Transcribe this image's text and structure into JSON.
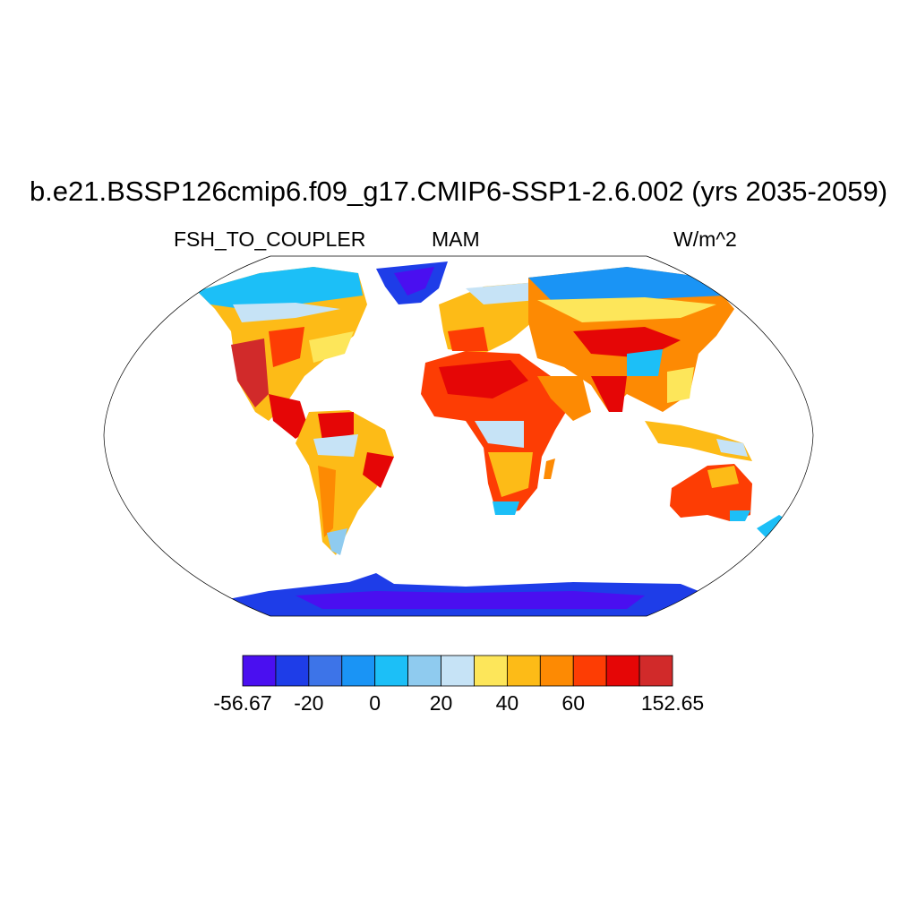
{
  "header": {
    "title": "b.e21.BSSP126cmip6.f09_g17.CMIP6-SSP1-2.6.002 (yrs 2035-2059)",
    "variable": "FSH_TO_COUPLER",
    "season": "MAM",
    "units": "W/m^2"
  },
  "colorbar": {
    "colors": [
      "#4a0ff0",
      "#1e3de8",
      "#3d74e8",
      "#1a94f5",
      "#1cbff7",
      "#8fcbef",
      "#c6e3f6",
      "#fde65a",
      "#fdbb17",
      "#fd8a03",
      "#fd3d04",
      "#e50606",
      "#d12a2a"
    ],
    "labels": [
      {
        "text": "-56.67",
        "boundary": 0
      },
      {
        "text": "-20",
        "boundary": 2
      },
      {
        "text": "0",
        "boundary": 4
      },
      {
        "text": "20",
        "boundary": 6
      },
      {
        "text": "40",
        "boundary": 8
      },
      {
        "text": "60",
        "boundary": 10
      },
      {
        "text": "152.65",
        "boundary": 13
      }
    ]
  }
}
